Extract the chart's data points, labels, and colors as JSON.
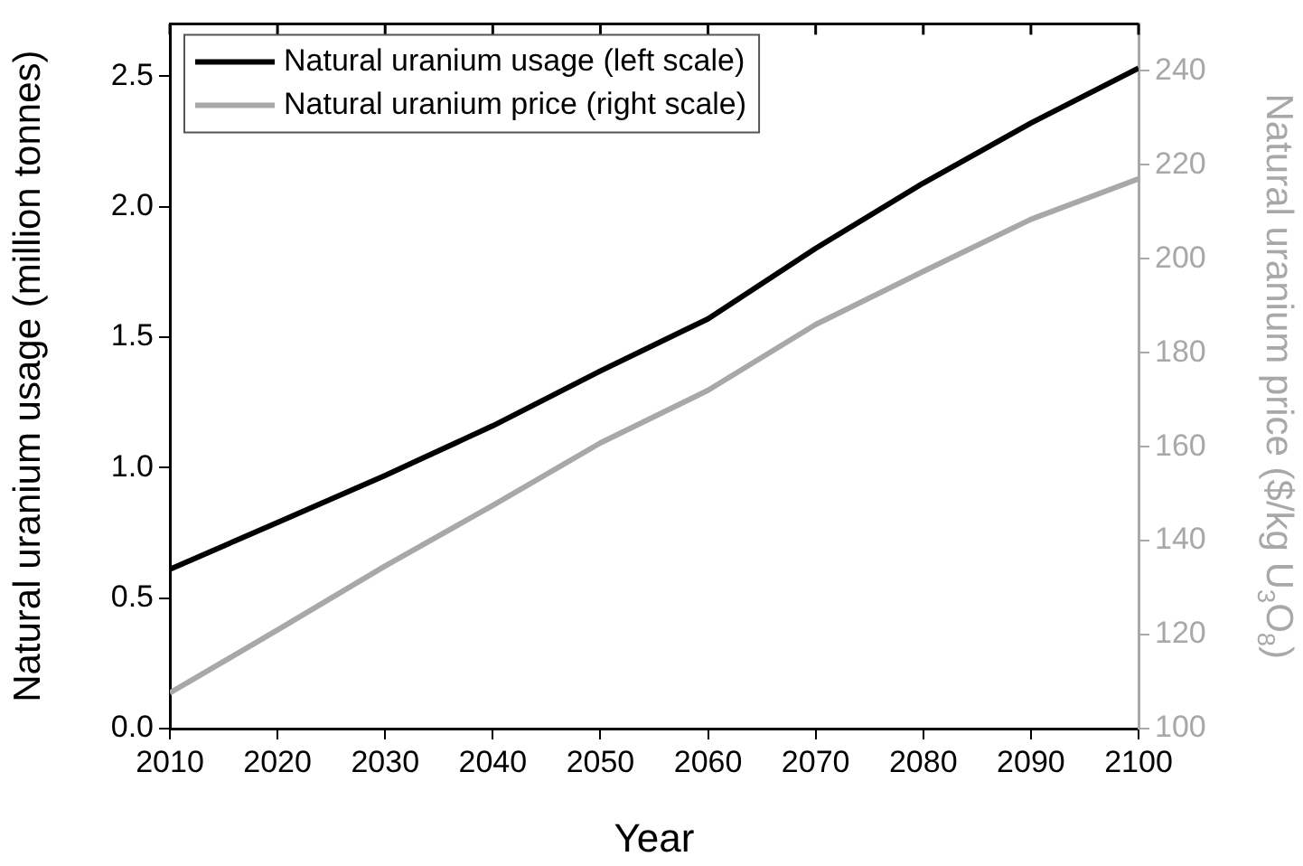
{
  "chart_data": {
    "type": "line",
    "xlabel": "Year",
    "ylabel": "Natural uranium usage (million tonnes)",
    "y2label": "Natural uranium price ($/kg U$_{3}$O$_{8}$)",
    "x": [
      2010,
      2020,
      2030,
      2040,
      2050,
      2060,
      2070,
      2080,
      2090,
      2100
    ],
    "series": [
      {
        "name": "Natural uranium usage (left scale)",
        "color": "#000000",
        "axis": "y",
        "values": [
          0.61,
          0.79,
          0.97,
          1.16,
          1.37,
          1.57,
          1.84,
          2.09,
          2.32,
          2.53
        ]
      },
      {
        "name": "Natural uranium price (right scale)",
        "color": "#a8a8a8",
        "axis": "y2",
        "values": [
          107.6,
          121,
          134.6,
          147.5,
          160.8,
          172,
          186,
          197.3,
          208.4,
          217
        ]
      }
    ],
    "xlim": [
      2010,
      2100
    ],
    "xticks": [
      2010,
      2020,
      2030,
      2040,
      2050,
      2060,
      2070,
      2080,
      2090,
      2100
    ],
    "ylim": [
      0,
      2.7
    ],
    "yticks": [
      {
        "value": 0,
        "label": "0.0"
      },
      0.5,
      {
        "value": 1,
        "label": "1.0"
      },
      1.5,
      {
        "value": 2,
        "label": "2.0"
      },
      2.5
    ],
    "y2lim": [
      100,
      250
    ],
    "y2ticks": [
      100,
      120,
      140,
      160,
      180,
      200,
      220,
      240
    ],
    "legend": "top left",
    "grid": false,
    "marker": "none",
    "line_style": "solid"
  }
}
